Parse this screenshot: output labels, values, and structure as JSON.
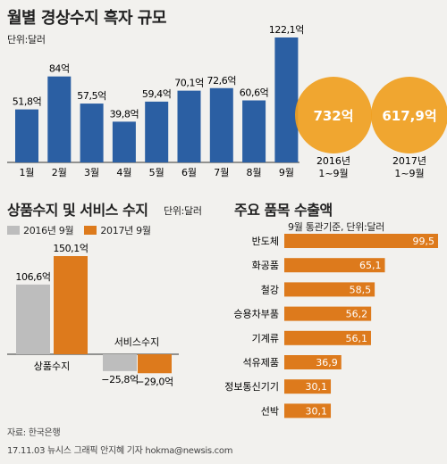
{
  "monthly": {
    "title": "월별 경상수지 흑자 규모",
    "unit": "단위:달러",
    "categories": [
      "1월",
      "2월",
      "3월",
      "4월",
      "5월",
      "6월",
      "7월",
      "8월",
      "9월"
    ],
    "labels": [
      "51,8억",
      "84억",
      "57,5억",
      "39,8억",
      "59,4억",
      "70,1억",
      "72,6억",
      "60,6억",
      "122,1억"
    ]
  },
  "totals": [
    {
      "value_label": "732억",
      "period_line1": "2016년",
      "period_line2": "1~9월"
    },
    {
      "value_label": "617,9억",
      "period_line1": "2017년",
      "period_line2": "1~9월"
    }
  ],
  "goods_services": {
    "title": "상품수지 및 서비스 수지",
    "unit": "단위:달러",
    "legend": [
      "2016년 9월",
      "2017년 9월"
    ],
    "categories": [
      "상품수지",
      "서비스수지"
    ],
    "labels_2016": [
      "106,6억",
      "−25,8억"
    ],
    "labels_2017": [
      "150,1억",
      "−29,0억"
    ]
  },
  "exports": {
    "title": "주요 품목 수출액",
    "unit": "9월 통관기준, 단위:달러",
    "items": [
      "반도체",
      "화공품",
      "철강",
      "승용차부품",
      "기계류",
      "석유제품",
      "정보통신기기",
      "선박"
    ],
    "value_labels": [
      "99,5",
      "65,1",
      "58,5",
      "56,2",
      "56,1",
      "36,9",
      "30,1",
      "30,1"
    ]
  },
  "source": {
    "line1": "자료: 한국은행",
    "line2": "17.11.03 뉴시스 그래픽 안지혜 기자 hokma@newsis.com"
  },
  "colors": {
    "blue": "#2b5fa3",
    "orange": "#dd7a1c",
    "gray": "#bdbdbd",
    "circle": "#f0a020",
    "background": "#f2f1ee"
  },
  "chart_data": [
    {
      "type": "bar",
      "title": "월별 경상수지 흑자 규모",
      "ylabel": "단위:달러",
      "categories": [
        "1월",
        "2월",
        "3월",
        "4월",
        "5월",
        "6월",
        "7월",
        "8월",
        "9월"
      ],
      "values": [
        51.8,
        84,
        57.5,
        39.8,
        59.4,
        70.1,
        72.6,
        60.6,
        122.1
      ]
    },
    {
      "type": "bar",
      "title": "상품수지 및 서비스 수지",
      "ylabel": "단위:달러",
      "categories": [
        "상품수지",
        "서비스수지"
      ],
      "series": [
        {
          "name": "2016년 9월",
          "values": [
            106.6,
            -25.8
          ]
        },
        {
          "name": "2017년 9월",
          "values": [
            150.1,
            -29.0
          ]
        }
      ]
    },
    {
      "type": "bar",
      "orientation": "horizontal",
      "title": "주요 품목 수출액",
      "ylabel": "9월 통관기준, 단위:달러",
      "categories": [
        "반도체",
        "화공품",
        "철강",
        "승용차부품",
        "기계류",
        "석유제품",
        "정보통신기기",
        "선박"
      ],
      "values": [
        99.5,
        65.1,
        58.5,
        56.2,
        56.1,
        36.9,
        30.1,
        30.1
      ]
    }
  ]
}
